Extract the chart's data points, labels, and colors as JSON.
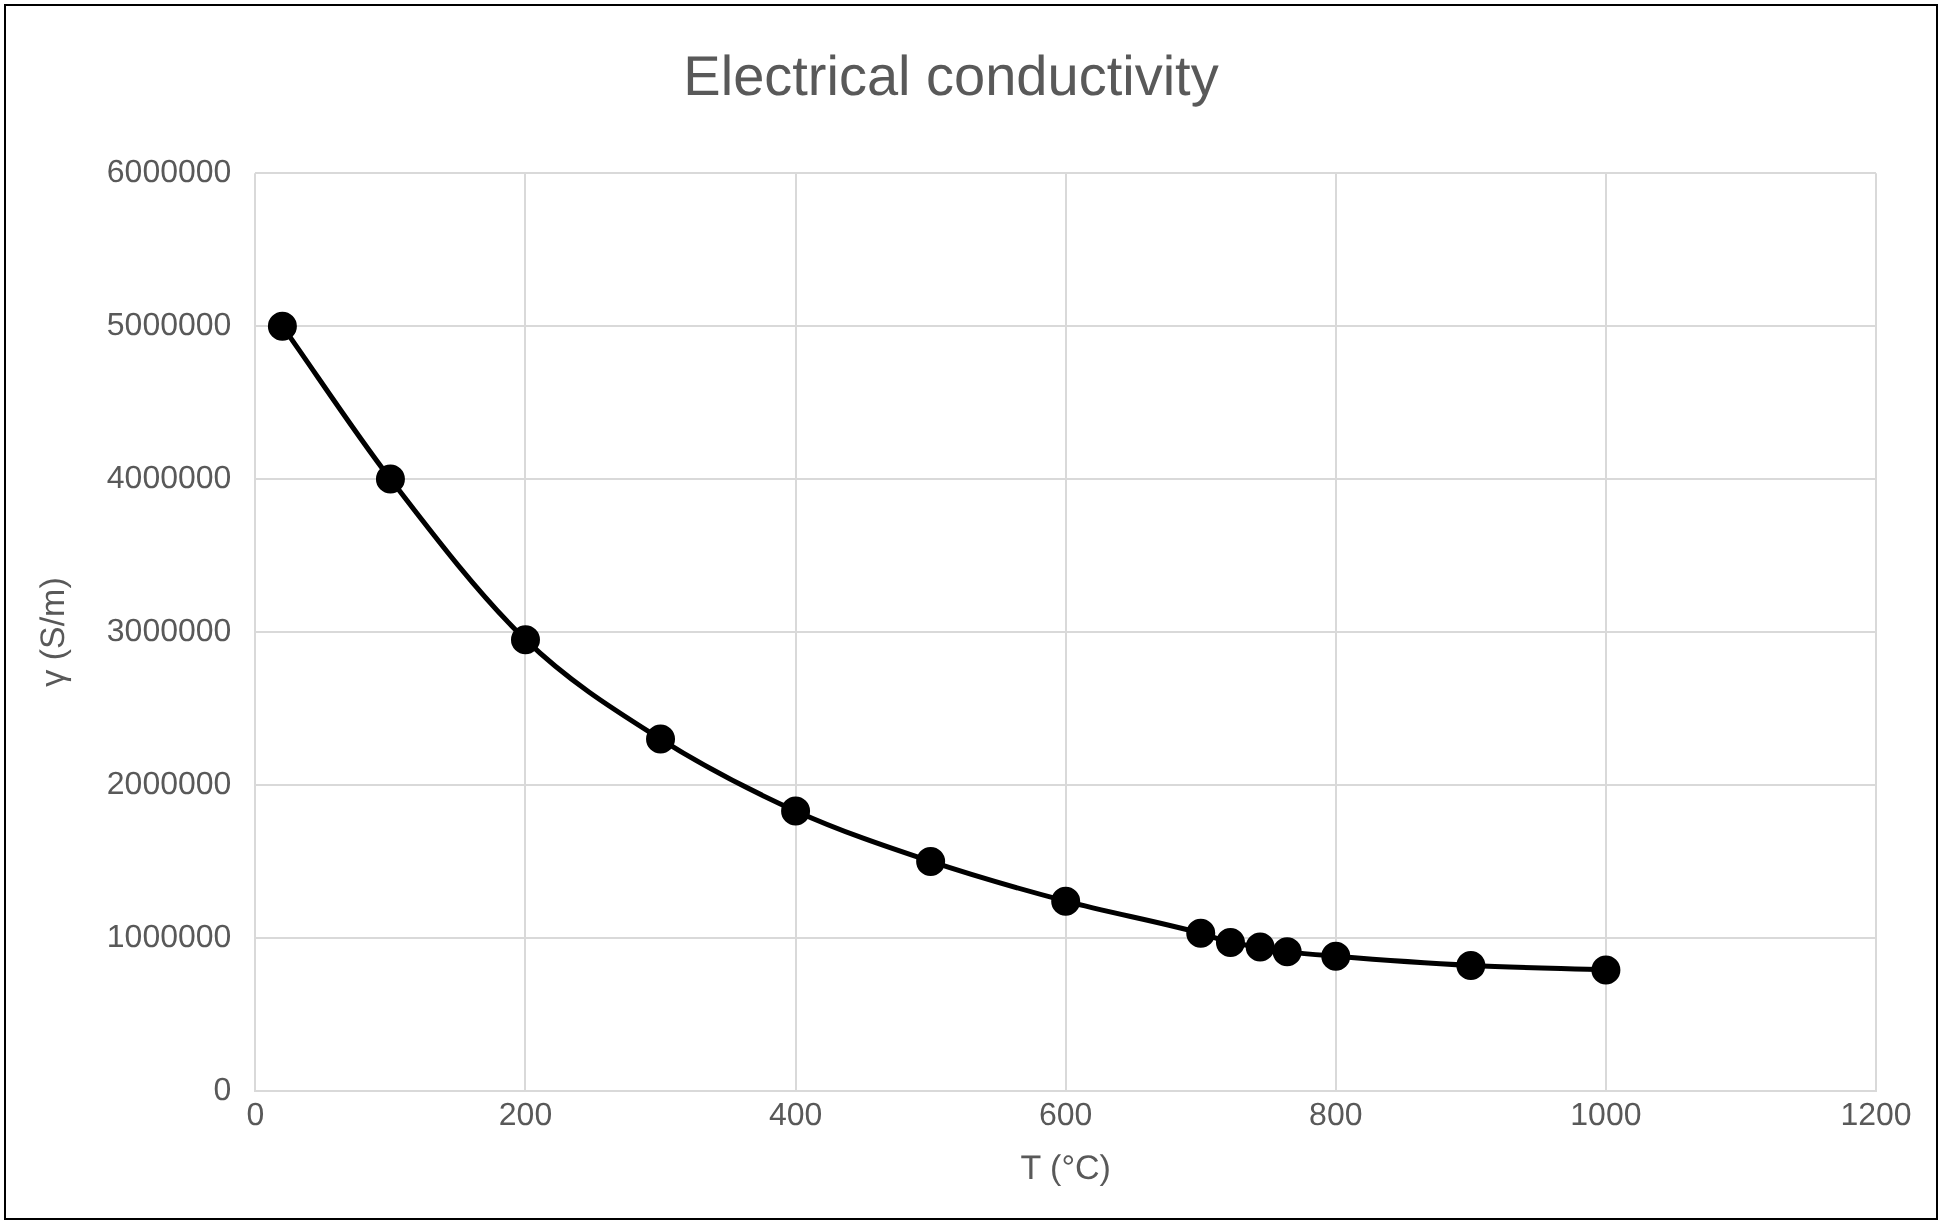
{
  "chart_data": {
    "type": "line",
    "title": "Electrical conductivity",
    "xlabel": "T (°C)",
    "ylabel": "γ (S/m)",
    "xlim": [
      0,
      1200
    ],
    "xticks": [
      0,
      200,
      400,
      600,
      800,
      1000,
      1200
    ],
    "ylim": [
      0,
      6000000
    ],
    "yticks": [
      0,
      1000000,
      2000000,
      3000000,
      4000000,
      5000000,
      6000000
    ],
    "grid": true,
    "legend": false,
    "marker": "circle",
    "line_style": "solid",
    "series": [
      {
        "color": "#000000",
        "x": [
          20,
          100,
          200,
          300,
          400,
          500,
          600,
          700,
          722,
          744,
          764,
          800,
          900,
          1000
        ],
        "values": [
          5000000,
          4000000,
          2950000,
          2300000,
          1830000,
          1500000,
          1240000,
          1030000,
          970000,
          940000,
          910000,
          880000,
          820000,
          790000
        ]
      }
    ]
  }
}
